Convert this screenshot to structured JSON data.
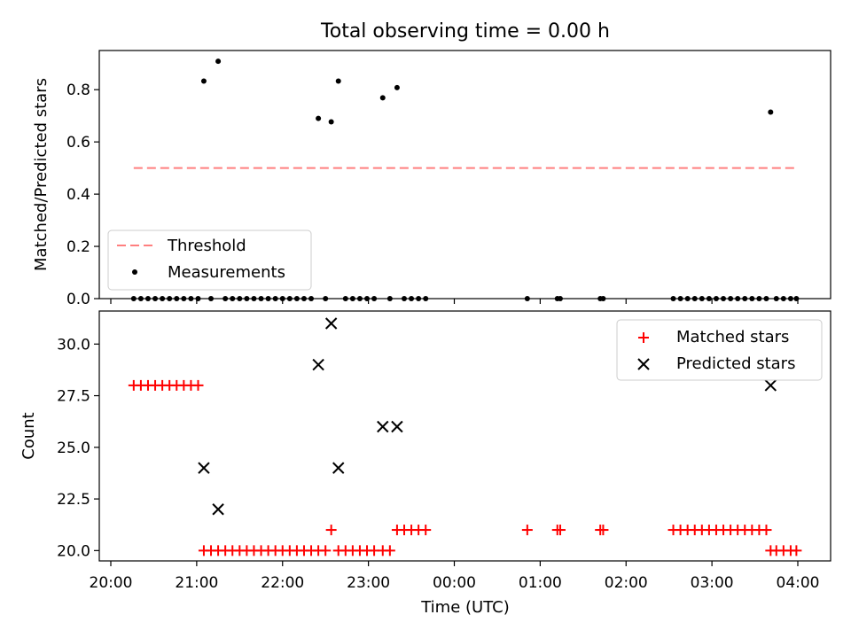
{
  "title": "Total observing time = 0.00 h",
  "chart_data": [
    {
      "type": "scatter",
      "panel": "top",
      "ylabel": "Matched/Predicted stars",
      "ylim": [
        0,
        0.95
      ],
      "yticks": [
        0.0,
        0.2,
        0.4,
        0.6,
        0.8
      ],
      "ytick_labels": [
        "0.0",
        "0.2",
        "0.4",
        "0.6",
        "0.8"
      ],
      "legend_position": "lower-left",
      "threshold": {
        "name": "Threshold",
        "value": 0.5,
        "x_start": "20:16",
        "x_end": "03:59",
        "color": "#ff7f7f"
      },
      "measurements": {
        "name": "Measurements",
        "color": "#000000",
        "points": [
          {
            "x": "21:05",
            "y": 0.833
          },
          {
            "x": "21:15",
            "y": 0.909
          },
          {
            "x": "22:25",
            "y": 0.69
          },
          {
            "x": "22:34",
            "y": 0.677
          },
          {
            "x": "22:39",
            "y": 0.833
          },
          {
            "x": "23:10",
            "y": 0.769
          },
          {
            "x": "23:20",
            "y": 0.808
          },
          {
            "x": "03:41",
            "y": 0.714
          }
        ],
        "zero_times": [
          "20:16",
          "20:21",
          "20:26",
          "20:31",
          "20:36",
          "20:41",
          "20:46",
          "20:51",
          "20:56",
          "21:01",
          "21:10",
          "21:20",
          "21:25",
          "21:30",
          "21:35",
          "21:40",
          "21:45",
          "21:50",
          "21:55",
          "22:00",
          "22:05",
          "22:10",
          "22:15",
          "22:20",
          "22:30",
          "22:44",
          "22:49",
          "22:54",
          "22:59",
          "23:04",
          "23:15",
          "23:25",
          "23:30",
          "23:35",
          "23:40",
          "00:51",
          "01:12",
          "01:14",
          "01:42",
          "01:44",
          "02:33",
          "02:38",
          "02:43",
          "02:48",
          "02:53",
          "02:58",
          "03:03",
          "03:08",
          "03:13",
          "03:18",
          "03:23",
          "03:28",
          "03:33",
          "03:38",
          "03:45",
          "03:50",
          "03:55",
          "03:59"
        ]
      }
    },
    {
      "type": "scatter",
      "panel": "bottom",
      "xlabel": "Time (UTC)",
      "ylabel": "Count",
      "ylim": [
        19.5,
        31.6
      ],
      "yticks": [
        20.0,
        22.5,
        25.0,
        27.5,
        30.0
      ],
      "ytick_labels": [
        "20.0",
        "22.5",
        "25.0",
        "27.5",
        "30.0"
      ],
      "xticks": [
        "20:00",
        "21:00",
        "22:00",
        "23:00",
        "00:00",
        "01:00",
        "02:00",
        "03:00",
        "04:00"
      ],
      "legend_position": "top-right",
      "series": [
        {
          "name": "Matched stars",
          "marker": "plus",
          "color": "#ff0000",
          "points": [
            {
              "x": "20:16",
              "y": 28
            },
            {
              "x": "20:21",
              "y": 28
            },
            {
              "x": "20:26",
              "y": 28
            },
            {
              "x": "20:31",
              "y": 28
            },
            {
              "x": "20:36",
              "y": 28
            },
            {
              "x": "20:41",
              "y": 28
            },
            {
              "x": "20:46",
              "y": 28
            },
            {
              "x": "20:51",
              "y": 28
            },
            {
              "x": "20:56",
              "y": 28
            },
            {
              "x": "21:01",
              "y": 28
            },
            {
              "x": "21:05",
              "y": 20
            },
            {
              "x": "21:10",
              "y": 20
            },
            {
              "x": "21:15",
              "y": 20
            },
            {
              "x": "21:20",
              "y": 20
            },
            {
              "x": "21:25",
              "y": 20
            },
            {
              "x": "21:30",
              "y": 20
            },
            {
              "x": "21:35",
              "y": 20
            },
            {
              "x": "21:40",
              "y": 20
            },
            {
              "x": "21:45",
              "y": 20
            },
            {
              "x": "21:50",
              "y": 20
            },
            {
              "x": "21:55",
              "y": 20
            },
            {
              "x": "22:00",
              "y": 20
            },
            {
              "x": "22:05",
              "y": 20
            },
            {
              "x": "22:10",
              "y": 20
            },
            {
              "x": "22:15",
              "y": 20
            },
            {
              "x": "22:20",
              "y": 20
            },
            {
              "x": "22:25",
              "y": 20
            },
            {
              "x": "22:30",
              "y": 20
            },
            {
              "x": "22:34",
              "y": 21
            },
            {
              "x": "22:39",
              "y": 20
            },
            {
              "x": "22:44",
              "y": 20
            },
            {
              "x": "22:49",
              "y": 20
            },
            {
              "x": "22:54",
              "y": 20
            },
            {
              "x": "22:59",
              "y": 20
            },
            {
              "x": "23:04",
              "y": 20
            },
            {
              "x": "23:10",
              "y": 20
            },
            {
              "x": "23:15",
              "y": 20
            },
            {
              "x": "23:20",
              "y": 21
            },
            {
              "x": "23:25",
              "y": 21
            },
            {
              "x": "23:30",
              "y": 21
            },
            {
              "x": "23:35",
              "y": 21
            },
            {
              "x": "23:40",
              "y": 21
            },
            {
              "x": "00:51",
              "y": 21
            },
            {
              "x": "01:12",
              "y": 21
            },
            {
              "x": "01:14",
              "y": 21
            },
            {
              "x": "01:42",
              "y": 21
            },
            {
              "x": "01:44",
              "y": 21
            },
            {
              "x": "02:33",
              "y": 21
            },
            {
              "x": "02:38",
              "y": 21
            },
            {
              "x": "02:43",
              "y": 21
            },
            {
              "x": "02:48",
              "y": 21
            },
            {
              "x": "02:53",
              "y": 21
            },
            {
              "x": "02:58",
              "y": 21
            },
            {
              "x": "03:03",
              "y": 21
            },
            {
              "x": "03:08",
              "y": 21
            },
            {
              "x": "03:13",
              "y": 21
            },
            {
              "x": "03:18",
              "y": 21
            },
            {
              "x": "03:23",
              "y": 21
            },
            {
              "x": "03:28",
              "y": 21
            },
            {
              "x": "03:33",
              "y": 21
            },
            {
              "x": "03:38",
              "y": 21
            },
            {
              "x": "03:41",
              "y": 20
            },
            {
              "x": "03:45",
              "y": 20
            },
            {
              "x": "03:50",
              "y": 20
            },
            {
              "x": "03:55",
              "y": 20
            },
            {
              "x": "03:59",
              "y": 20
            }
          ]
        },
        {
          "name": "Predicted stars",
          "marker": "x",
          "color": "#000000",
          "points": [
            {
              "x": "21:05",
              "y": 24
            },
            {
              "x": "21:15",
              "y": 22
            },
            {
              "x": "22:25",
              "y": 29
            },
            {
              "x": "22:34",
              "y": 31
            },
            {
              "x": "22:39",
              "y": 24
            },
            {
              "x": "23:10",
              "y": 26
            },
            {
              "x": "23:20",
              "y": 26
            },
            {
              "x": "03:41",
              "y": 28
            }
          ]
        }
      ]
    }
  ]
}
